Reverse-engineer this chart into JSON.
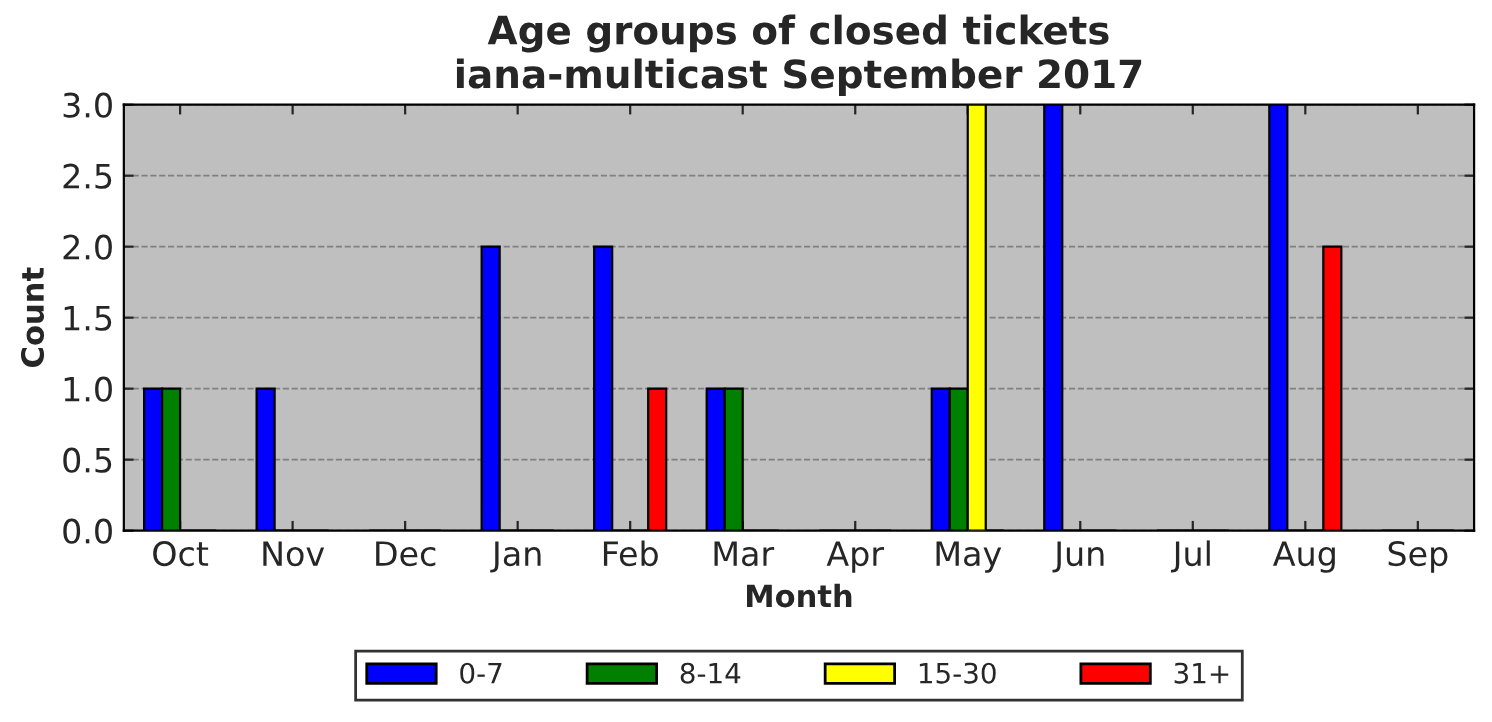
{
  "chart_data": {
    "type": "bar",
    "title": "Age groups of closed tickets\niana-multicast September 2017",
    "xlabel": "Month",
    "ylabel": "Count",
    "categories": [
      "Oct",
      "Nov",
      "Dec",
      "Jan",
      "Feb",
      "Mar",
      "Apr",
      "May",
      "Jun",
      "Jul",
      "Aug",
      "Sep"
    ],
    "series": [
      {
        "name": "0-7",
        "color": "#0000ff",
        "values": [
          1,
          1,
          0,
          2,
          2,
          1,
          0,
          1,
          3,
          0,
          3,
          0
        ]
      },
      {
        "name": "8-14",
        "color": "#008000",
        "values": [
          1,
          0,
          0,
          0,
          0,
          1,
          0,
          1,
          0,
          0,
          0,
          0
        ]
      },
      {
        "name": "15-30",
        "color": "#ffff00",
        "values": [
          0,
          0,
          0,
          0,
          0,
          0,
          0,
          3,
          0,
          0,
          0,
          0
        ]
      },
      {
        "name": "31+",
        "color": "#ff0000",
        "values": [
          0,
          0,
          0,
          0,
          1,
          0,
          0,
          0,
          0,
          0,
          2,
          0
        ]
      }
    ],
    "ylim": [
      0,
      3
    ],
    "yticks": [
      {
        "value": 0,
        "label": "0.0"
      },
      {
        "value": 0.5,
        "label": "0.5"
      },
      {
        "value": 1,
        "label": "1.0"
      },
      {
        "value": 1.5,
        "label": "1.5"
      },
      {
        "value": 2,
        "label": "2.0"
      },
      {
        "value": 2.5,
        "label": "2.5"
      },
      {
        "value": 3,
        "label": "3.0"
      }
    ],
    "grid": "y",
    "legend": "bottom"
  }
}
